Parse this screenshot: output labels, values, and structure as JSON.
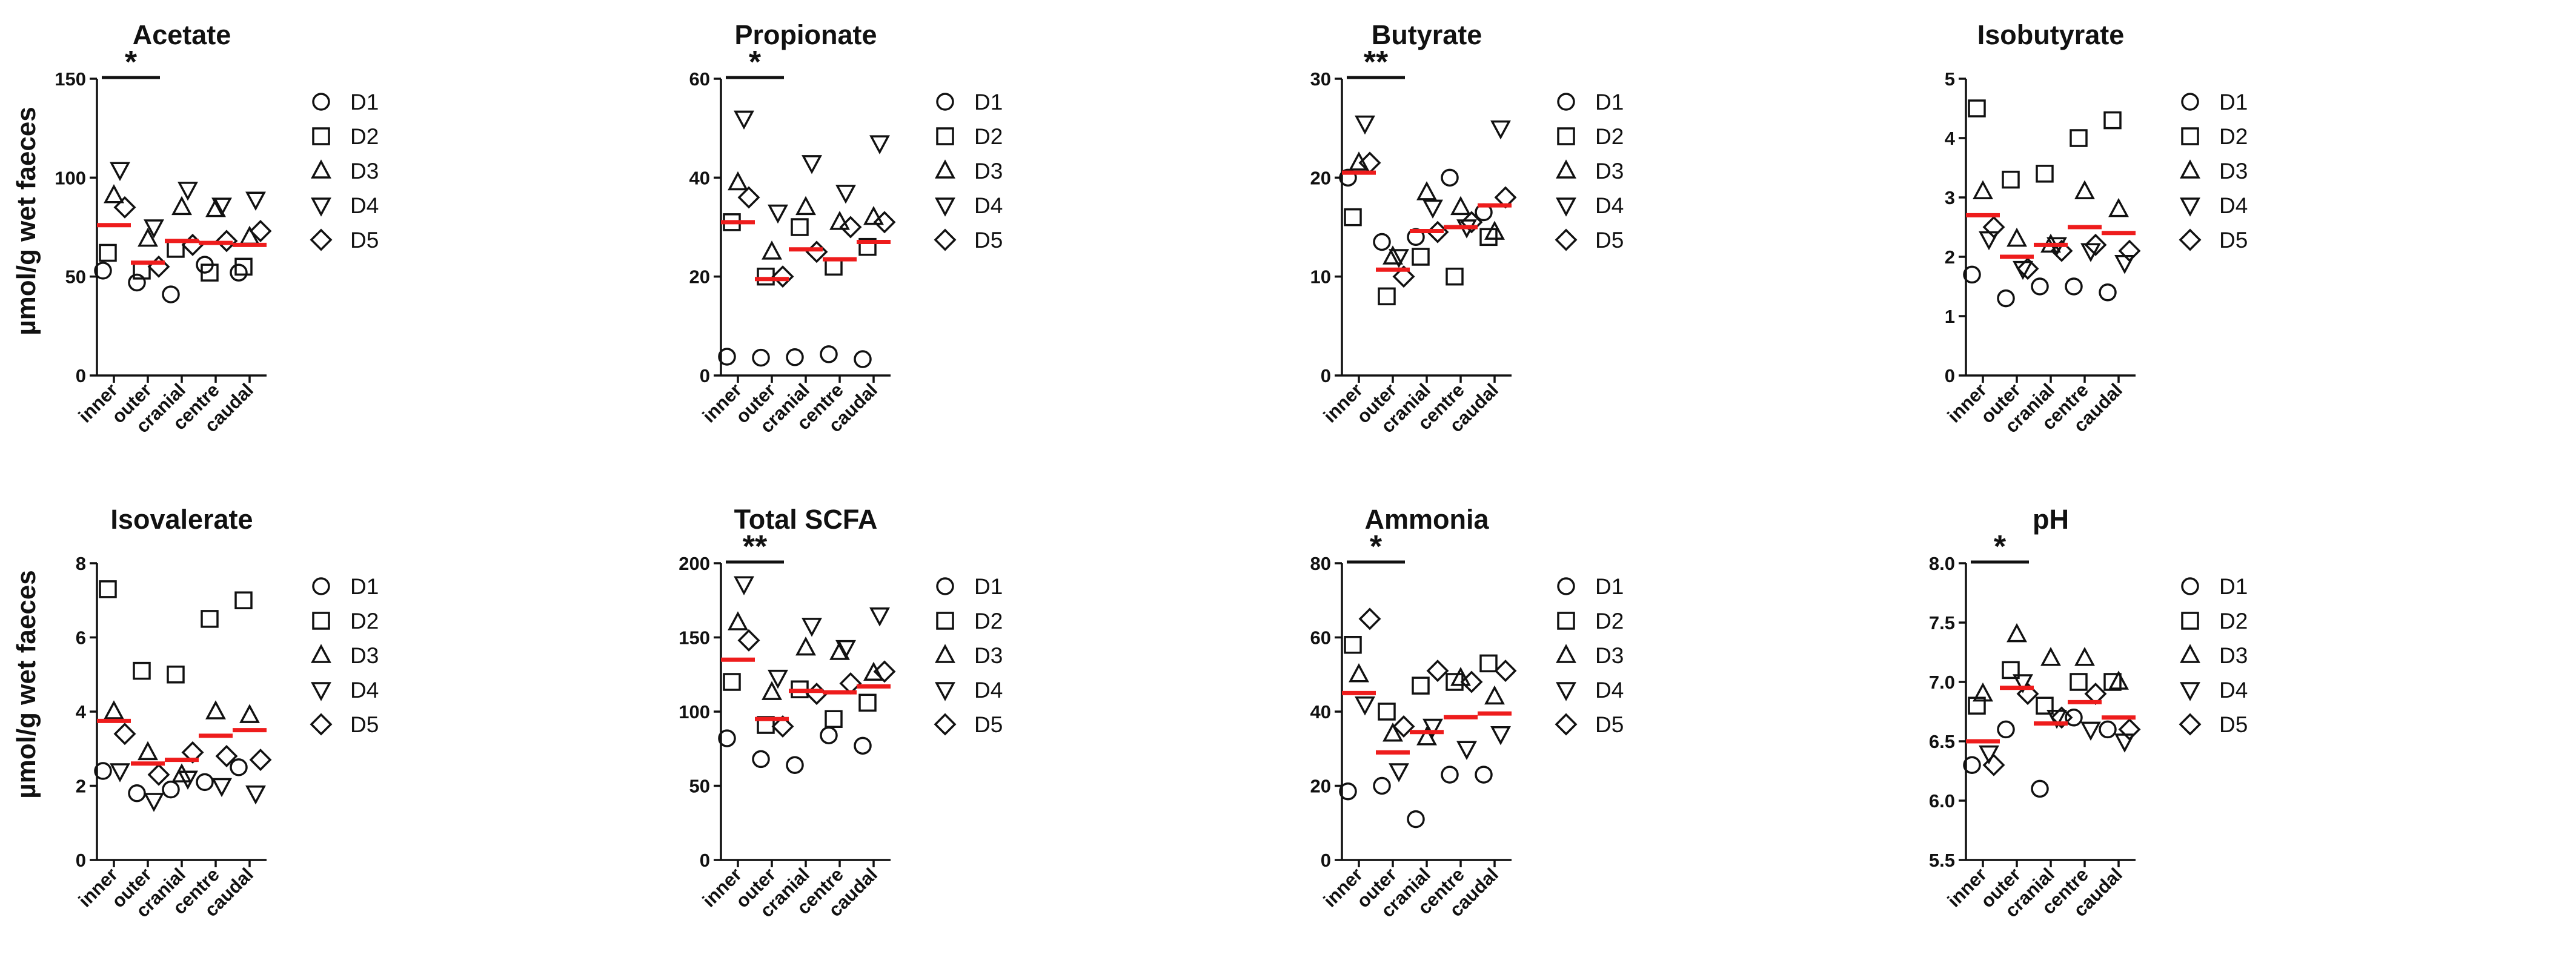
{
  "figure": {
    "ylabel": "µmol/g wet faeces",
    "categories": [
      "inner",
      "outer",
      "cranial",
      "centre",
      "caudal"
    ],
    "legend": [
      "D1",
      "D2",
      "D3",
      "D4",
      "D5"
    ],
    "marker_shapes": [
      "circle",
      "square",
      "triangle-up",
      "triangle-down",
      "diamond"
    ],
    "mean_color": "#ee1c1c",
    "marker_color": "#111111"
  },
  "chart_data": [
    {
      "type": "scatter",
      "title": "Acetate",
      "ylim": [
        0,
        150
      ],
      "yticks": [
        "0",
        "50",
        "100",
        "150"
      ],
      "points": [
        [
          53,
          62,
          91,
          104,
          85
        ],
        [
          47,
          53,
          69,
          75,
          55
        ],
        [
          41,
          64,
          85,
          94,
          66
        ],
        [
          56,
          52,
          84,
          86,
          68
        ],
        [
          52,
          55,
          70,
          89,
          73
        ]
      ],
      "means": [
        76,
        57,
        68,
        67,
        66
      ],
      "significance": {
        "label": "*",
        "from": "inner",
        "to": "outer"
      }
    },
    {
      "type": "scatter",
      "title": "Propionate",
      "ylim": [
        0,
        60
      ],
      "yticks": [
        "0",
        "20",
        "40",
        "60"
      ],
      "points": [
        [
          3.8,
          31,
          39,
          52,
          36
        ],
        [
          3.6,
          20,
          25,
          33,
          20
        ],
        [
          3.7,
          30,
          34,
          43,
          25
        ],
        [
          4.3,
          22,
          31,
          37,
          30
        ],
        [
          3.3,
          26,
          32,
          47,
          31
        ]
      ],
      "means": [
        31,
        19.5,
        25.5,
        23.5,
        27
      ],
      "significance": {
        "label": "*",
        "from": "inner",
        "to": "outer"
      }
    },
    {
      "type": "scatter",
      "title": "Butyrate",
      "ylim": [
        0,
        30
      ],
      "yticks": [
        "0",
        "10",
        "20",
        "30"
      ],
      "points": [
        [
          20,
          16,
          21.5,
          25.5,
          21.5
        ],
        [
          13.5,
          8,
          12,
          12,
          10
        ],
        [
          14,
          12,
          18.5,
          17,
          14.5
        ],
        [
          20,
          10,
          17,
          15,
          15.5
        ],
        [
          16.5,
          14,
          14.5,
          25,
          18
        ]
      ],
      "means": [
        20.5,
        10.7,
        14.6,
        15,
        17.2
      ],
      "significance": {
        "label": "**",
        "from": "inner",
        "to": "outer"
      }
    },
    {
      "type": "scatter",
      "title": "Isobutyrate",
      "ylim": [
        0,
        5
      ],
      "yticks": [
        "0",
        "1",
        "2",
        "3",
        "4",
        "5"
      ],
      "points": [
        [
          1.7,
          4.5,
          3.1,
          2.3,
          2.5
        ],
        [
          1.3,
          3.3,
          2.3,
          1.8,
          1.8
        ],
        [
          1.5,
          3.4,
          2.2,
          2.2,
          2.1
        ],
        [
          1.5,
          4.0,
          3.1,
          2.1,
          2.2
        ],
        [
          1.4,
          4.3,
          2.8,
          1.9,
          2.1
        ]
      ],
      "means": [
        2.7,
        2.0,
        2.2,
        2.5,
        2.4
      ],
      "significance": null
    },
    {
      "type": "scatter",
      "title": "Isovalerate",
      "ylim": [
        0,
        8
      ],
      "yticks": [
        "0",
        "2",
        "4",
        "6",
        "8"
      ],
      "points": [
        [
          2.4,
          7.3,
          4.0,
          2.4,
          3.4
        ],
        [
          1.8,
          5.1,
          2.9,
          1.6,
          2.3
        ],
        [
          1.9,
          5.0,
          2.3,
          2.2,
          2.9
        ],
        [
          2.1,
          6.5,
          4.0,
          2.0,
          2.8
        ],
        [
          2.5,
          7.0,
          3.9,
          1.8,
          2.7
        ]
      ],
      "means": [
        3.75,
        2.6,
        2.7,
        3.35,
        3.5
      ],
      "significance": null
    },
    {
      "type": "scatter",
      "title": "Total SCFA",
      "ylim": [
        0,
        200
      ],
      "yticks": [
        "0",
        "50",
        "100",
        "150",
        "200"
      ],
      "points": [
        [
          82,
          120,
          160,
          186,
          148
        ],
        [
          68,
          91,
          113,
          123,
          90
        ],
        [
          64,
          115,
          143,
          158,
          112
        ],
        [
          84,
          95,
          140,
          143,
          119
        ],
        [
          77,
          106,
          126,
          165,
          127
        ]
      ],
      "means": [
        135,
        95,
        114,
        113,
        117
      ],
      "significance": {
        "label": "**",
        "from": "inner",
        "to": "outer"
      }
    },
    {
      "type": "scatter",
      "title": "Ammonia",
      "ylim": [
        0,
        80
      ],
      "yticks": [
        "0",
        "20",
        "40",
        "60",
        "80"
      ],
      "points": [
        [
          18.5,
          58,
          50,
          42,
          65
        ],
        [
          20,
          40,
          34,
          24,
          36
        ],
        [
          11,
          47,
          33,
          36,
          51
        ],
        [
          23,
          48,
          49,
          30,
          48
        ],
        [
          23,
          53,
          44,
          34,
          51
        ]
      ],
      "means": [
        45,
        29,
        34.5,
        38.5,
        39.5
      ],
      "significance": {
        "label": "*",
        "from": "inner",
        "to": "outer"
      }
    },
    {
      "type": "scatter",
      "title": "pH",
      "ylim": [
        5.5,
        8.0
      ],
      "yticks": [
        "5.5",
        "6.0",
        "6.5",
        "7.0",
        "7.5",
        "8.0"
      ],
      "points": [
        [
          6.3,
          6.8,
          6.9,
          6.4,
          6.3
        ],
        [
          6.6,
          7.1,
          7.4,
          7.0,
          6.9
        ],
        [
          6.1,
          6.8,
          7.2,
          6.7,
          6.7
        ],
        [
          6.7,
          7.0,
          7.2,
          6.6,
          6.9
        ],
        [
          6.6,
          7.0,
          7.0,
          6.5,
          6.6
        ]
      ],
      "means": [
        6.5,
        6.95,
        6.65,
        6.83,
        6.7
      ],
      "significance": {
        "label": "*",
        "from": "inner",
        "to": "outer"
      }
    }
  ]
}
